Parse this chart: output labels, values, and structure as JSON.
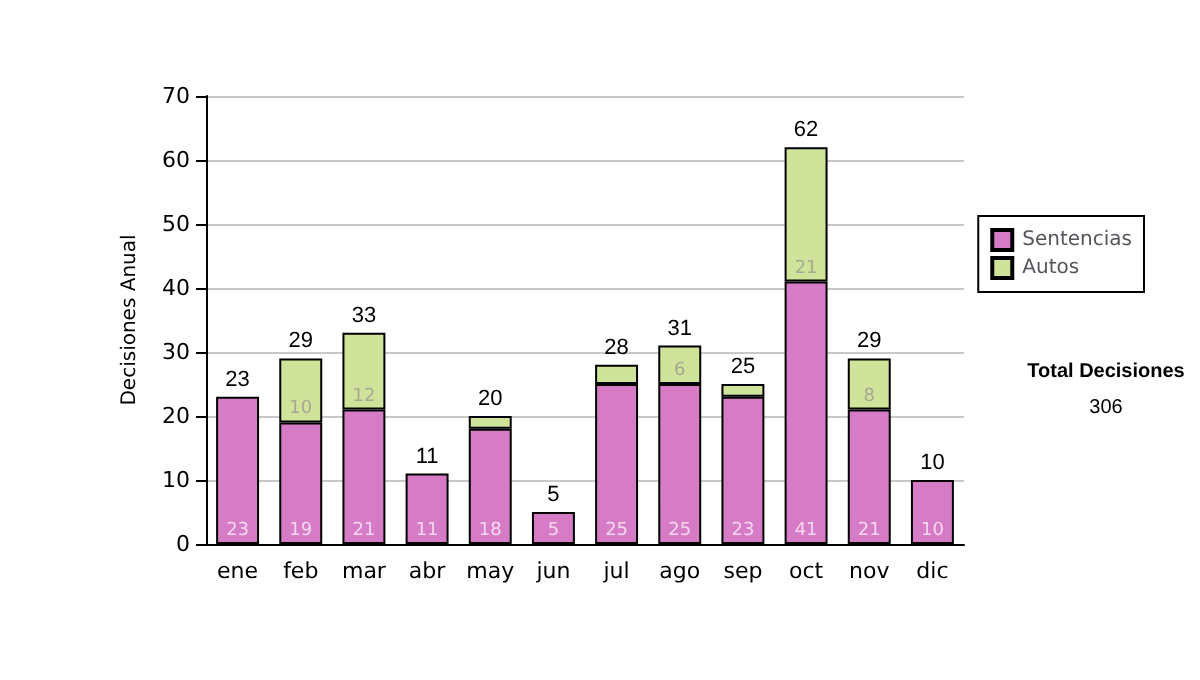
{
  "chart_data": {
    "type": "bar",
    "stacked": true,
    "ylabel": "Decisiones Anual",
    "categories": [
      "ene",
      "feb",
      "mar",
      "abr",
      "may",
      "jun",
      "jul",
      "ago",
      "sep",
      "oct",
      "nov",
      "dic"
    ],
    "series": [
      {
        "name": "Sentencias",
        "color": "#d67cc6",
        "values": [
          23,
          19,
          21,
          11,
          18,
          5,
          25,
          25,
          23,
          41,
          21,
          10
        ],
        "value_labels": [
          "23",
          "19",
          "21",
          "11",
          "18",
          "5",
          "25",
          "25",
          "23",
          "41",
          "21",
          "10"
        ]
      },
      {
        "name": "Autos",
        "color": "#cfe49a",
        "values": [
          0,
          10,
          12,
          0,
          2,
          0,
          3,
          6,
          2,
          21,
          8,
          0
        ],
        "value_labels": [
          null,
          "10",
          "12",
          null,
          null,
          null,
          null,
          "6",
          null,
          "21",
          "8",
          null
        ]
      }
    ],
    "totals": [
      "23",
      "29",
      "33",
      "11",
      "20",
      "5",
      "28",
      "31",
      "25",
      "62",
      "29",
      "10"
    ],
    "ylim": [
      0,
      70
    ],
    "yticks": [
      0,
      10,
      20,
      30,
      40,
      50,
      60,
      70
    ],
    "grid": "y",
    "legend": "right",
    "annotations": [
      "Total Decisiones",
      "306"
    ]
  }
}
